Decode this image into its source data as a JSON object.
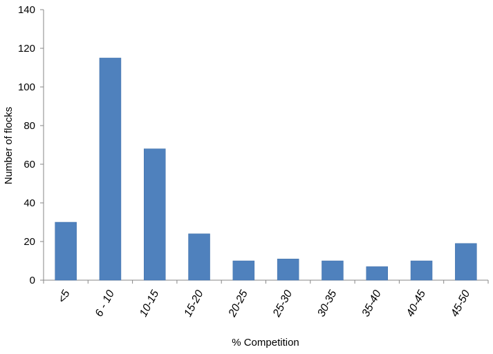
{
  "chart_data": {
    "type": "bar",
    "categories": [
      "<5",
      "6 - 10",
      "10-15",
      "15-20",
      "20-25",
      "25-30",
      "30-35",
      "35-40",
      "40-45",
      "45-50"
    ],
    "values": [
      30,
      115,
      68,
      24,
      10,
      11,
      10,
      7,
      10,
      19
    ],
    "xlabel": "% Competition",
    "ylabel": "Number of flocks",
    "ylim": [
      0,
      140
    ],
    "yticks": [
      0,
      20,
      40,
      60,
      80,
      100,
      120,
      140
    ],
    "grid": false,
    "legend": "none",
    "bar_color": "#4f81bd"
  }
}
